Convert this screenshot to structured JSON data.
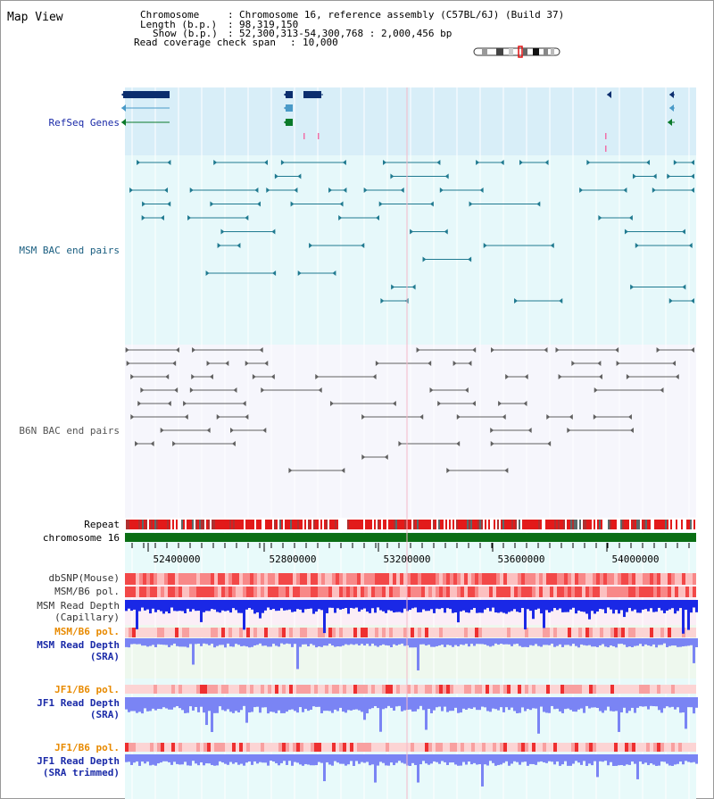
{
  "page_title": "Map View",
  "info": {
    "chromosome_label": "Chromosome",
    "chromosome_value": "Chromosome 16, reference assembly (C57BL/6J) (Build 37)",
    "length_label": "Length (b.p.)",
    "length_value": "98,319,150",
    "show_label": "Show (b.p.)",
    "show_value": "52,300,313-54,300,768 : 2,000,456 bp",
    "coverage_label": "Read coverage check span",
    "coverage_value": "10,000"
  },
  "tracks": {
    "refseq_genes": "RefSeq Genes",
    "msm_bac": "MSM BAC end pairs",
    "b6n_bac": "B6N BAC end pairs",
    "repeat": "Repeat",
    "chromosome": "chromosome 16",
    "dbsnp": "dbSNP(Mouse)",
    "msm_b6_pol_1": "MSM/B6 pol.",
    "msm_read_depth_cap_1": "MSM Read Depth",
    "msm_read_depth_cap_2": "(Capillary)",
    "msm_b6_pol_2": "MSM/B6 pol.",
    "msm_read_depth_sra_1": "MSM Read Depth",
    "msm_read_depth_sra_2": "(SRA)",
    "jf1_b6_pol_1": "JF1/B6 pol.",
    "jf1_read_depth_sra_1": "JF1 Read Depth",
    "jf1_read_depth_sra_2": "(SRA)",
    "jf1_b6_pol_2": "JF1/B6 pol.",
    "jf1_read_depth_trim_1": "JF1 Read Depth",
    "jf1_read_depth_trim_2": "(SRA trimmed)"
  },
  "axis": {
    "ticks": [
      "52400000",
      "52800000",
      "53200000",
      "53600000",
      "54000000"
    ]
  },
  "colors": {
    "refseq_bg": "#d8eef8",
    "msm_bg": "#e6f8fa",
    "b6n_bg": "#f6f6fc",
    "lower_bg": "#e8fafa",
    "gene_dark": "#0c2e6e",
    "gene_light": "#4a9ac8",
    "gene_green": "#0a7a2a",
    "msm_line": "#207a90",
    "b6n_line": "#606060",
    "chromosome": "#0a6e14",
    "depth_dark": "#1a28e6",
    "depth_light": "#7a84f4",
    "label_blue": "#1a2aa8",
    "label_orange": "#e88a00",
    "label_teal": "#1a5e80"
  }
}
